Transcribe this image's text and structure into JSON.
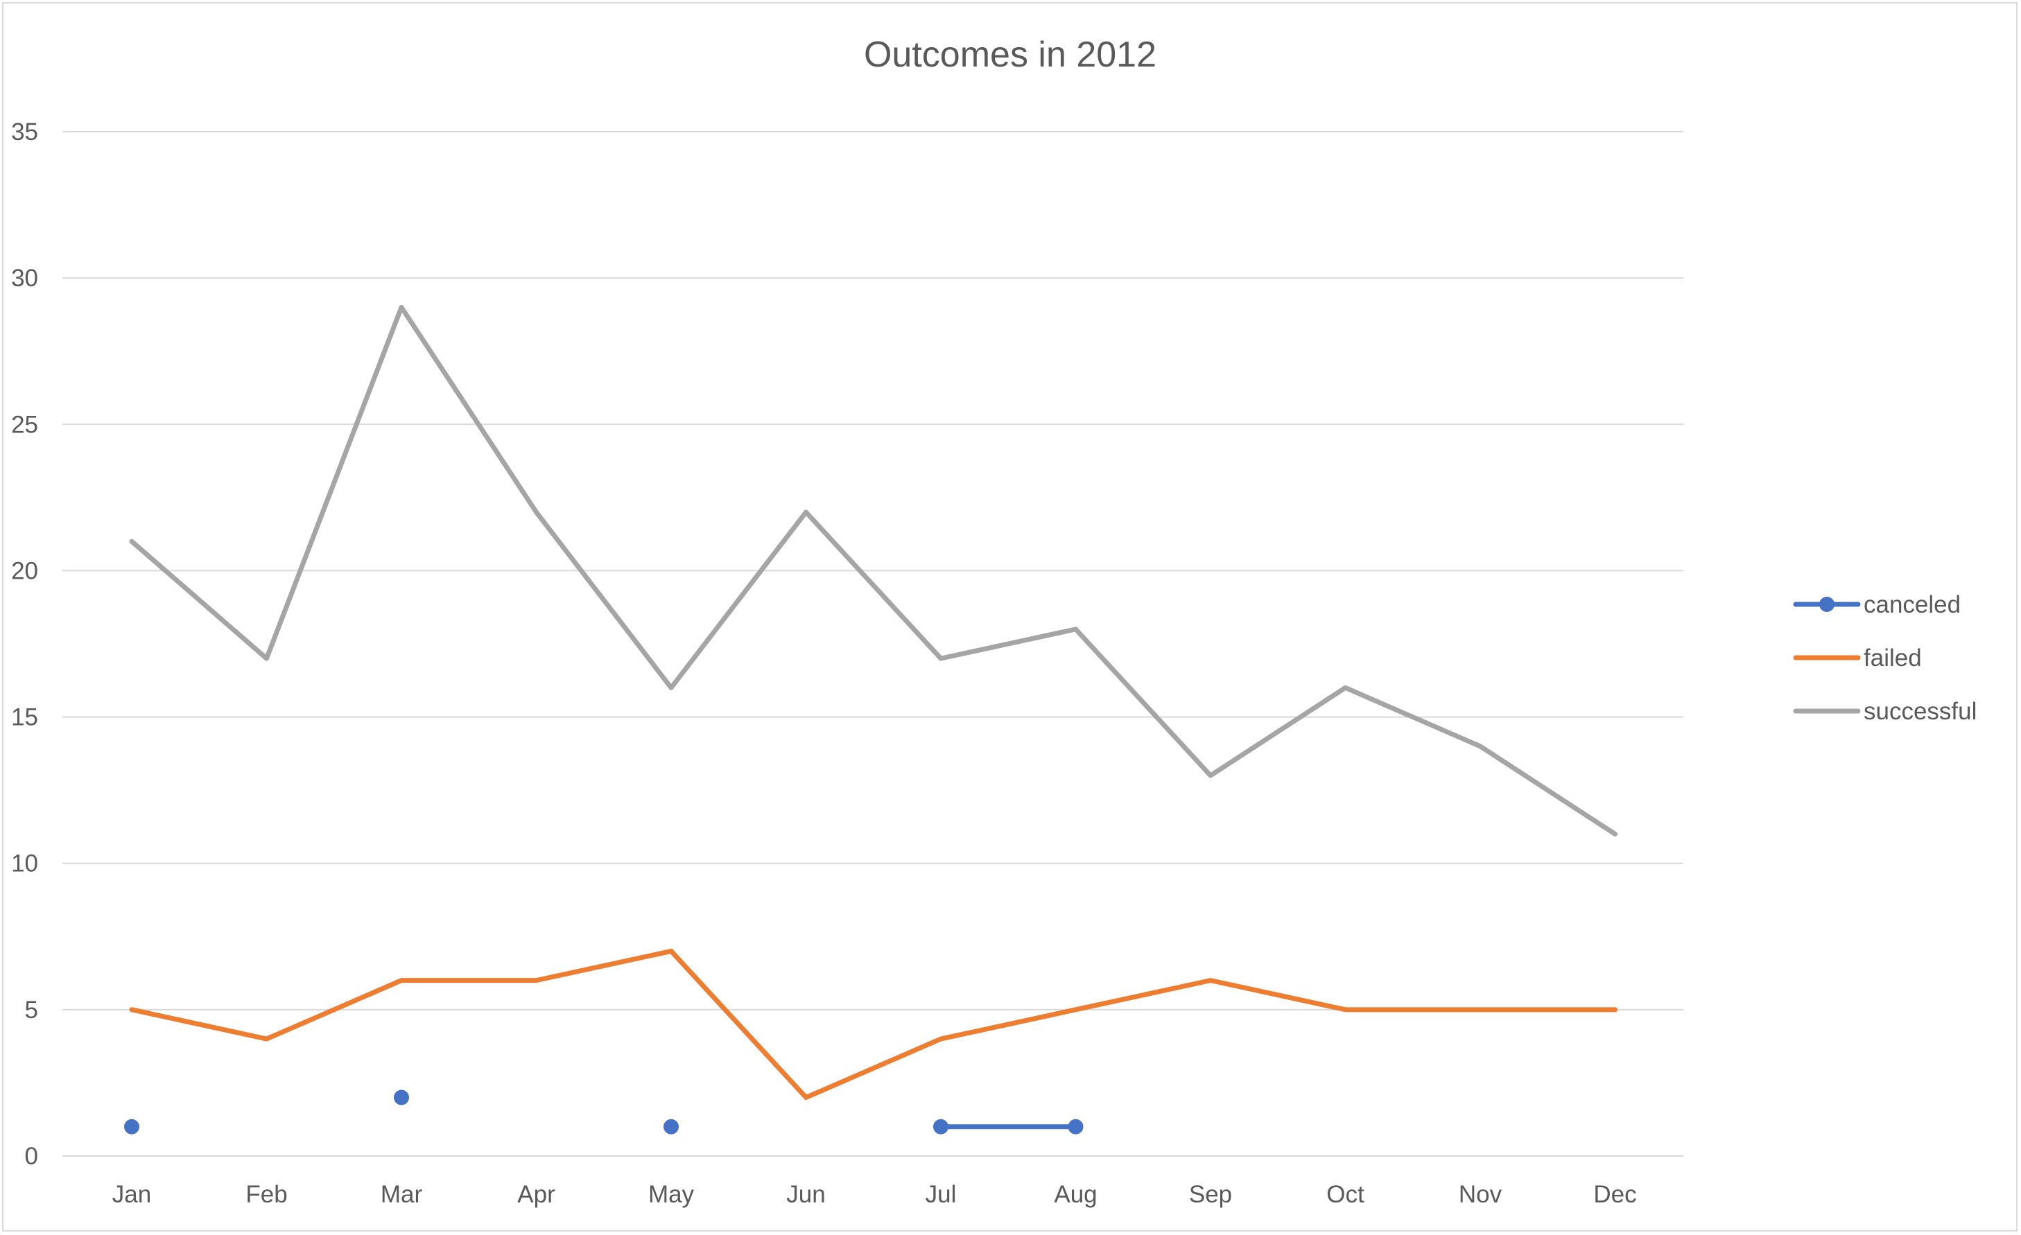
{
  "chart_data": {
    "type": "line",
    "title": "Outcomes in 2012",
    "xlabel": "",
    "ylabel": "",
    "categories": [
      "Jan",
      "Feb",
      "Mar",
      "Apr",
      "May",
      "Jun",
      "Jul",
      "Aug",
      "Sep",
      "Oct",
      "Nov",
      "Dec"
    ],
    "ylim": [
      0,
      35
    ],
    "yticks": [
      0,
      5,
      10,
      15,
      20,
      25,
      30,
      35
    ],
    "grid": true,
    "legend_position": "right",
    "series": [
      {
        "name": "canceled",
        "color": "#4472c4",
        "markers": true,
        "values": [
          1,
          null,
          2,
          null,
          1,
          null,
          1,
          1,
          null,
          null,
          null,
          null
        ]
      },
      {
        "name": "failed",
        "color": "#ed7d31",
        "markers": false,
        "values": [
          5,
          4,
          6,
          6,
          7,
          2,
          4,
          5,
          6,
          5,
          5,
          5
        ]
      },
      {
        "name": "successful",
        "color": "#a5a5a5",
        "markers": false,
        "values": [
          21,
          17,
          29,
          22,
          16,
          22,
          17,
          18,
          13,
          16,
          14,
          11
        ]
      }
    ]
  }
}
